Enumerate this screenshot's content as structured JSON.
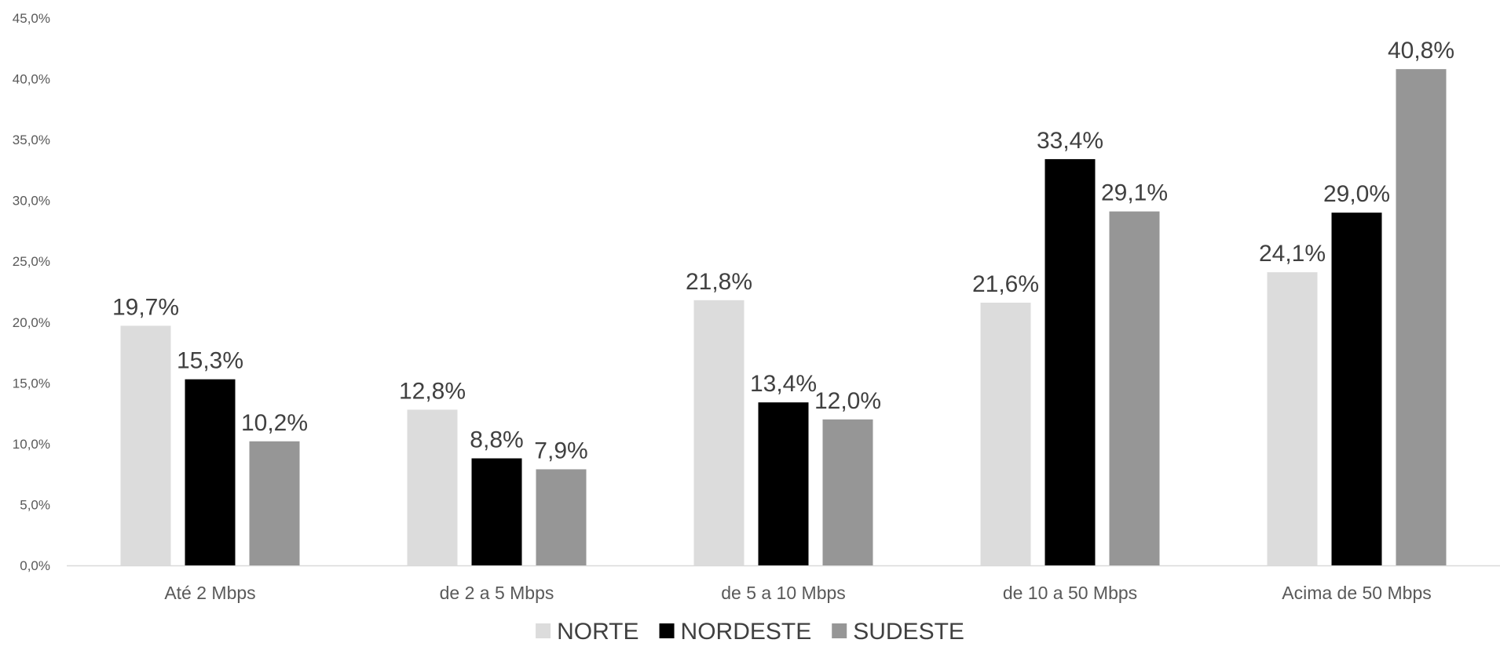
{
  "chart_data": {
    "type": "bar",
    "title": "",
    "xlabel": "",
    "ylabel": "",
    "ylim": [
      0,
      45
    ],
    "yticks": [
      "0,0%",
      "5,0%",
      "10,0%",
      "15,0%",
      "20,0%",
      "25,0%",
      "30,0%",
      "35,0%",
      "40,0%",
      "45,0%"
    ],
    "categories": [
      "Até 2 Mbps",
      "de 2 a 5 Mbps",
      "de 5 a 10 Mbps",
      "de 10 a 50 Mbps",
      "Acima de 50 Mbps"
    ],
    "series": [
      {
        "name": "NORTE",
        "color": "#dcdcdc",
        "values": [
          19.7,
          12.8,
          21.8,
          21.6,
          24.1
        ],
        "labels": [
          "19,7%",
          "12,8%",
          "21,8%",
          "21,6%",
          "24,1%"
        ]
      },
      {
        "name": "NORDESTE",
        "color": "#000000",
        "values": [
          15.3,
          8.8,
          13.4,
          33.4,
          29.0
        ],
        "labels": [
          "15,3%",
          "8,8%",
          "13,4%",
          "33,4%",
          "29,0%"
        ]
      },
      {
        "name": "SUDESTE",
        "color": "#969696",
        "values": [
          10.2,
          7.9,
          12.0,
          29.1,
          40.8
        ],
        "labels": [
          "10,2%",
          "7,9%",
          "12,0%",
          "29,1%",
          "40,8%"
        ]
      }
    ],
    "grid": false,
    "legend": "bottom-center"
  }
}
